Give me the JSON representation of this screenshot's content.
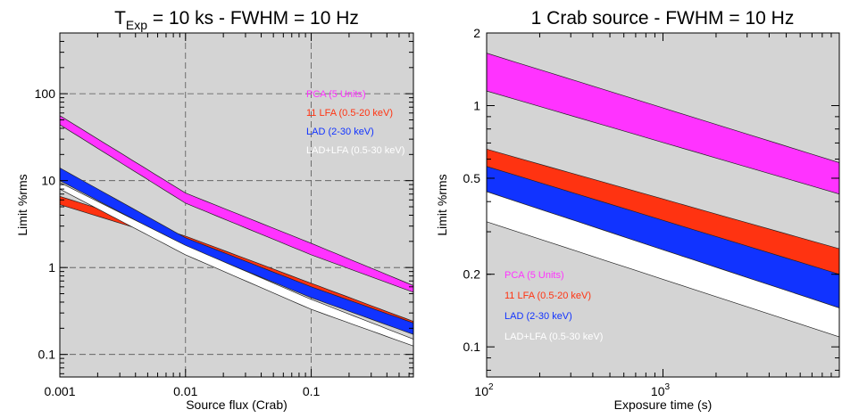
{
  "chart_data": [
    {
      "type": "area",
      "title_main": "T",
      "title_sub": "Exp",
      "title_rest": " = 10 ks  - FWHM = 10 Hz",
      "xlabel": "Source flux (Crab)",
      "ylabel": "Limit %rms",
      "xscale": "log",
      "yscale": "log",
      "xlim": [
        0.001,
        0.65
      ],
      "ylim": [
        0.055,
        500
      ],
      "grid": true,
      "xticks": [
        {
          "v": 0.001,
          "label": "0.001"
        },
        {
          "v": 0.01,
          "label": "0.01"
        },
        {
          "v": 0.1,
          "label": "0.1"
        }
      ],
      "yticks": [
        {
          "v": 0.1,
          "label": "0.1"
        },
        {
          "v": 1,
          "label": "1"
        },
        {
          "v": 10,
          "label": "10"
        },
        {
          "v": 100,
          "label": "100"
        }
      ],
      "series": [
        {
          "name": "PCA (5 Units)",
          "color": "#ff33ff",
          "x": [
            0.001,
            0.01,
            0.1,
            0.65
          ],
          "lower": [
            44,
            5.5,
            1.4,
            0.52
          ],
          "upper": [
            56,
            7.2,
            1.9,
            0.62
          ]
        },
        {
          "name": "11 LFA (0.5-20 keV)",
          "color": "#ff3311",
          "x": [
            0.001,
            0.01,
            0.1,
            0.65
          ],
          "lower": [
            5.3,
            1.9,
            0.55,
            0.2
          ],
          "upper": [
            6.6,
            2.3,
            0.66,
            0.24
          ]
        },
        {
          "name": "LAD (2-30 keV)",
          "color": "#1133ff",
          "x": [
            0.001,
            0.01,
            0.1,
            0.65
          ],
          "lower": [
            10.0,
            1.75,
            0.45,
            0.17
          ],
          "upper": [
            14.0,
            2.2,
            0.6,
            0.23
          ]
        },
        {
          "name": "LAD+LFA (0.5-30 keV)",
          "color": "#ffffff",
          "x": [
            0.001,
            0.01,
            0.1,
            0.65
          ],
          "lower": [
            8.0,
            1.4,
            0.33,
            0.125
          ],
          "upper": [
            9.5,
            1.8,
            0.43,
            0.15
          ]
        }
      ]
    },
    {
      "type": "area",
      "title_main": "1 Crab source - FWHM = 10 Hz",
      "xlabel": "Exposure time (s)",
      "ylabel": "Limit %rms",
      "xscale": "log",
      "yscale": "log",
      "xlim": [
        100,
        10000
      ],
      "ylim": [
        0.075,
        2
      ],
      "grid": false,
      "xticks": [
        {
          "v": 100,
          "base": "10",
          "exp": "2"
        },
        {
          "v": 1000,
          "base": "10",
          "exp": "3"
        }
      ],
      "yticks": [
        {
          "v": 0.1,
          "label": "0.1"
        },
        {
          "v": 0.2,
          "label": "0.2"
        },
        {
          "v": 0.5,
          "label": "0.5"
        },
        {
          "v": 1,
          "label": "1"
        },
        {
          "v": 2,
          "label": "2"
        }
      ],
      "series": [
        {
          "name": "PCA (5 Units)",
          "color": "#ff33ff",
          "x": [
            100,
            10000
          ],
          "lower": [
            1.15,
            0.43
          ],
          "upper": [
            1.65,
            0.58
          ]
        },
        {
          "name": "11 LFA (0.5-20 keV)",
          "color": "#ff3311",
          "x": [
            100,
            10000
          ],
          "lower": [
            0.5,
            0.185
          ],
          "upper": [
            0.66,
            0.255
          ]
        },
        {
          "name": "LAD (2-30 keV)",
          "color": "#1133ff",
          "x": [
            100,
            10000
          ],
          "lower": [
            0.44,
            0.145
          ],
          "upper": [
            0.56,
            0.2
          ]
        },
        {
          "name": "LAD+LFA (0.5-30 keV)",
          "color": "#ffffff",
          "x": [
            100,
            10000
          ],
          "lower": [
            0.33,
            0.11
          ],
          "upper": [
            0.44,
            0.145
          ]
        }
      ]
    }
  ]
}
